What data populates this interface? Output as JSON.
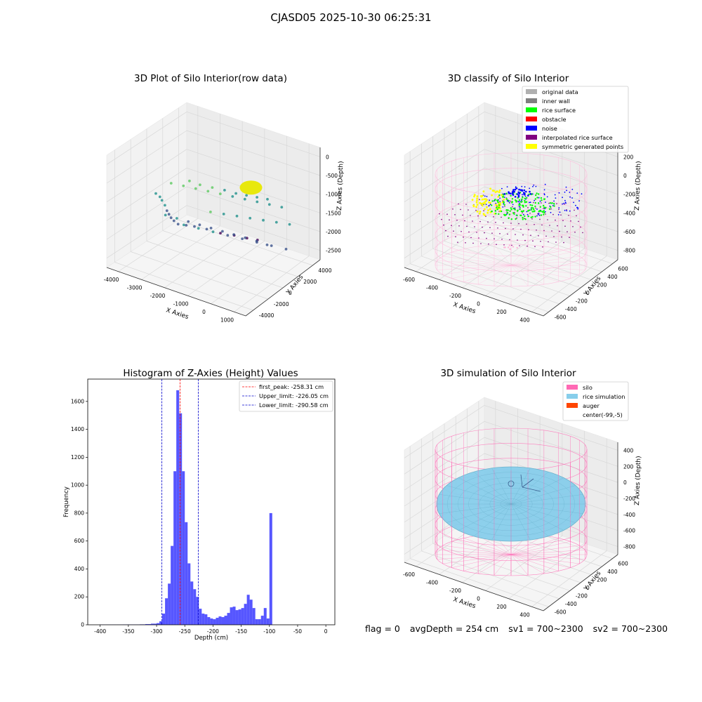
{
  "suptitle": "CJASD05 2025-10-30 06:25:31",
  "status": {
    "flag": "flag = 0",
    "avg_depth": "avgDepth = 254 cm",
    "sv1": "sv1 = 700~2300",
    "sv2": "sv2 = 700~2300"
  },
  "colors": {
    "hist_bar": "#4d4dff",
    "peak_line": "#ff0000",
    "limit_line": "#0000cc",
    "silo": "#ff69b4",
    "rice_simulation": "#87ceeb",
    "auger": "#ff4500",
    "original_data": "#b0b0b0",
    "inner_wall": "#808080",
    "rice_surface": "#00ff00",
    "obstacle": "#ff0000",
    "noise": "#0000ff",
    "interpolated_rice_surface": "#800080",
    "symmetric_generated_points": "#ffff00"
  },
  "chart_data": [
    {
      "id": "raw",
      "type": "scatter",
      "projection": "3d",
      "title": "3D Plot of Silo Interior(row data)",
      "xlabel": "X Axies",
      "ylabel": "Y Axies",
      "zlabel": "Z Axies (Depth)",
      "xticks": [
        "-4000",
        "-3000",
        "-2000",
        "-1000",
        "0",
        "1000"
      ],
      "yticks": [
        "-4000",
        "-2000",
        "0",
        "2000",
        "4000"
      ],
      "zticks": [
        "0",
        "-500",
        "-1000",
        "-1500",
        "-2000",
        "-2500"
      ],
      "grid": true,
      "colormap": "viridis",
      "points": [
        [
          -3800,
          -800,
          -1250
        ],
        [
          -3700,
          -600,
          -1350
        ],
        [
          -3650,
          -500,
          -1450
        ],
        [
          -3600,
          -300,
          -1600
        ],
        [
          -3550,
          -200,
          -1750
        ],
        [
          -3500,
          -100,
          -1850
        ],
        [
          -3450,
          0,
          -1950
        ],
        [
          -3400,
          200,
          -2050
        ],
        [
          -3300,
          400,
          -2150
        ],
        [
          -3100,
          800,
          -2200
        ],
        [
          -2900,
          1200,
          -2250
        ],
        [
          -2600,
          1800,
          -2350
        ],
        [
          -2200,
          2300,
          -2450
        ],
        [
          -1800,
          2800,
          -2500
        ],
        [
          -1400,
          3200,
          -2550
        ],
        [
          -1100,
          3600,
          -2600
        ],
        [
          -2500,
          -400,
          -700
        ],
        [
          -2200,
          0,
          -800
        ],
        [
          -1900,
          600,
          -900
        ],
        [
          -1600,
          1200,
          -1000
        ],
        [
          -1300,
          1700,
          -1100
        ],
        [
          -1000,
          2100,
          -1150
        ],
        [
          -700,
          2500,
          -1200
        ],
        [
          -400,
          2900,
          -1250
        ],
        [
          -3000,
          -1800,
          -1500
        ],
        [
          -2700,
          -1300,
          -1600
        ],
        [
          -2400,
          -800,
          -1700
        ],
        [
          -2100,
          -300,
          -1800
        ],
        [
          -1800,
          200,
          -1900
        ],
        [
          -1500,
          700,
          -2000
        ],
        [
          -1200,
          1200,
          -2100
        ],
        [
          -900,
          1700,
          -2200
        ],
        [
          -600,
          2200,
          -2300
        ],
        [
          -300,
          2600,
          -2400
        ],
        [
          -2600,
          -2200,
          -500
        ],
        [
          -2300,
          -1600,
          -600
        ],
        [
          -2000,
          -1000,
          -700
        ],
        [
          -1700,
          -400,
          -800
        ],
        [
          -1400,
          200,
          -900
        ],
        [
          -1100,
          800,
          -1000
        ],
        [
          -800,
          1400,
          -1100
        ],
        [
          -500,
          2000,
          -1200
        ],
        [
          -200,
          2600,
          -1300
        ],
        [
          100,
          3200,
          -1400
        ],
        [
          -1900,
          -2600,
          -1400
        ],
        [
          -1500,
          -2000,
          -1500
        ],
        [
          -1100,
          -1400,
          -1600
        ],
        [
          -700,
          -800,
          -1700
        ],
        [
          -300,
          -200,
          -1800
        ],
        [
          100,
          400,
          -1900
        ],
        [
          500,
          1000,
          -2000
        ],
        [
          900,
          1600,
          -2100
        ],
        [
          -900,
          -2200,
          -900
        ],
        [
          -600,
          -1500,
          -1000
        ],
        [
          -300,
          -800,
          -1100
        ],
        [
          0,
          -100,
          -1200
        ],
        [
          300,
          600,
          -1300
        ],
        [
          600,
          1300,
          -1400
        ],
        [
          900,
          2000,
          -1500
        ]
      ],
      "surface_blob": {
        "x": 0,
        "y": 0,
        "z": -400,
        "color": "#e8e800"
      }
    },
    {
      "id": "classify",
      "type": "scatter",
      "projection": "3d",
      "title": "3D classify of Silo Interior",
      "xlabel": "X Axies",
      "ylabel": "Y Axies",
      "zlabel": "Z Axies (Depth)",
      "xticks": [
        "-600",
        "-400",
        "-200",
        "0",
        "200",
        "400"
      ],
      "yticks": [
        "-600",
        "-400",
        "-200",
        "0",
        "200",
        "400",
        "600"
      ],
      "zticks": [
        "200",
        "0",
        "-200",
        "-400",
        "-600",
        "-800"
      ],
      "grid": true,
      "legend": {
        "position": "top-right",
        "entries": [
          {
            "label": "original data",
            "color": "#b0b0b0"
          },
          {
            "label": "inner wall",
            "color": "#808080"
          },
          {
            "label": "rice surface",
            "color": "#00ff00"
          },
          {
            "label": "obstacle",
            "color": "#ff0000"
          },
          {
            "label": "noise",
            "color": "#0000ff"
          },
          {
            "label": "interpolated rice surface",
            "color": "#800080"
          },
          {
            "label": "symmetric generated points",
            "color": "#ffff00"
          }
        ]
      },
      "silo": {
        "radius": 580,
        "z_top": 150,
        "z_bottom": -900
      },
      "rice_surface_z": -400
    },
    {
      "id": "histogram",
      "type": "bar",
      "title": "Histogram of Z-Axies (Height) Values",
      "xlabel": "Depth (cm)",
      "ylabel": "Frequency",
      "xlim": [
        -422,
        16
      ],
      "ylim": [
        0,
        1760
      ],
      "xticks": [
        -400,
        -350,
        -300,
        -250,
        -200,
        -150,
        -100,
        -50,
        0
      ],
      "yticks": [
        0,
        200,
        400,
        600,
        800,
        1000,
        1200,
        1400,
        1600
      ],
      "bins": {
        "left_edges": [
          -400,
          -390,
          -380,
          -370,
          -360,
          -350,
          -340,
          -330,
          -320,
          -310,
          -300,
          -295,
          -290,
          -285,
          -280,
          -275,
          -270,
          -265,
          -260,
          -255,
          -250,
          -245,
          -240,
          -235,
          -230,
          -225,
          -220,
          -215,
          -210,
          -205,
          -200,
          -195,
          -190,
          -185,
          -180,
          -175,
          -170,
          -165,
          -160,
          -155,
          -150,
          -145,
          -140,
          -135,
          -130,
          -125,
          -120,
          -115,
          -110,
          -105,
          -100,
          -95,
          -90,
          -85,
          -80,
          -75,
          -70,
          -65,
          -60,
          -55,
          -50,
          -45,
          -40,
          -35,
          -30,
          -25,
          -20,
          -15,
          -10,
          -5
        ],
        "widths": [
          10,
          10,
          10,
          10,
          10,
          10,
          10,
          10,
          10,
          10,
          5,
          5,
          5,
          5,
          5,
          5,
          5,
          5,
          5,
          5,
          5,
          5,
          5,
          5,
          5,
          5,
          5,
          5,
          5,
          5,
          5,
          5,
          5,
          5,
          5,
          5,
          5,
          5,
          5,
          5,
          5,
          5,
          5,
          5,
          5,
          5,
          5,
          5,
          5,
          5,
          5,
          5,
          5,
          5,
          5,
          5,
          5,
          5,
          5,
          5,
          5,
          5,
          5,
          5,
          5,
          5,
          5,
          5,
          5,
          5
        ],
        "counts": [
          1,
          1,
          1,
          1,
          2,
          2,
          2,
          3,
          5,
          8,
          12,
          25,
          80,
          190,
          295,
          565,
          1100,
          1680,
          1515,
          1100,
          735,
          440,
          310,
          255,
          200,
          115,
          80,
          75,
          55,
          45,
          40,
          50,
          60,
          55,
          65,
          85,
          125,
          130,
          105,
          110,
          120,
          150,
          215,
          180,
          120,
          40,
          40,
          65,
          120,
          45,
          800,
          0,
          0,
          0,
          0,
          0,
          0,
          0,
          0,
          0,
          0,
          0,
          0,
          0,
          0,
          0,
          0,
          0,
          0,
          0
        ]
      },
      "vlines": [
        {
          "label": "first_peak: -258.31 cm",
          "x": -258.31,
          "color": "#ff0000"
        },
        {
          "label": "Upper_limit: -226.05 cm",
          "x": -226.05,
          "color": "#0000cc"
        },
        {
          "label": "Lower_limit: -290.58 cm",
          "x": -290.58,
          "color": "#0000cc"
        }
      ],
      "legend": {
        "position": "top-right"
      }
    },
    {
      "id": "simulation",
      "type": "scatter",
      "projection": "3d",
      "title": "3D simulation of Silo Interior",
      "xlabel": "X Axies",
      "ylabel": "Y Axies",
      "zlabel": "Z Axies (Depth)",
      "xticks": [
        "-600",
        "-400",
        "-200",
        "0",
        "200",
        "400"
      ],
      "yticks": [
        "-600",
        "-400",
        "-200",
        "0",
        "200",
        "400",
        "600"
      ],
      "zticks": [
        "400",
        "200",
        "0",
        "-200",
        "-400",
        "-600",
        "-800"
      ],
      "grid": true,
      "legend": {
        "position": "top-right",
        "entries": [
          {
            "label": "silo",
            "color": "#ff69b4"
          },
          {
            "label": "rice simulation",
            "color": "#87ceeb"
          },
          {
            "label": "auger",
            "color": "#ff4500"
          },
          {
            "label": "center(-99,-5)",
            "color": ""
          }
        ]
      },
      "silo": {
        "radius": 580,
        "z_top": 350,
        "z_bottom": -900
      },
      "rice_surface_z": -254
    }
  ]
}
